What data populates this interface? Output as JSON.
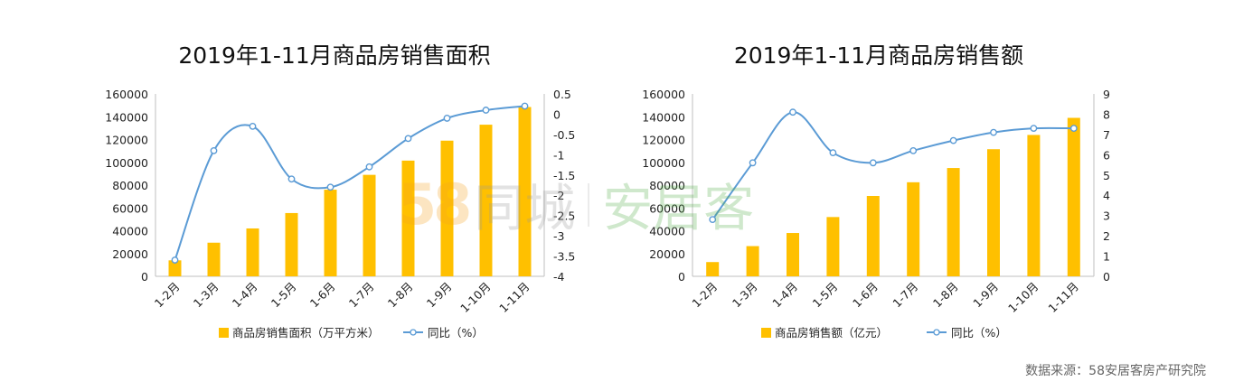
{
  "brand": {
    "bar_color": "#FFC000",
    "line_color": "#5B9BD5"
  },
  "watermark": {
    "num": "58",
    "tongcheng": "同城",
    "anjuke": "安居客"
  },
  "source": "数据来源：58安居客房产研究院",
  "chart_data": [
    {
      "type": "bar",
      "title": "2019年1-11月商品房销售面积",
      "categories": [
        "1-2月",
        "1-3月",
        "1-4月",
        "1-5月",
        "1-6月",
        "1-7月",
        "1-8月",
        "1-9月",
        "1-10月",
        "1-11月"
      ],
      "series": [
        {
          "name": "商品房销售面积（万平方米）",
          "type": "bar",
          "axis": "left",
          "values": [
            14000,
            29500,
            42000,
            55500,
            76000,
            89000,
            101500,
            119000,
            133000,
            148500
          ]
        },
        {
          "name": "同比（%）",
          "type": "line",
          "axis": "right",
          "values": [
            -3.6,
            -0.9,
            -0.3,
            -1.6,
            -1.8,
            -1.3,
            -0.6,
            -0.1,
            0.1,
            0.2
          ]
        }
      ],
      "y_left": {
        "min": 0,
        "max": 160000,
        "step": 20000
      },
      "y_right": {
        "min": -4,
        "max": 0.5,
        "step": 0.5,
        "ticks": [
          "0.5",
          "0",
          "-0.5",
          "-1",
          "-1.5",
          "-2",
          "-2.5",
          "-3",
          "-3.5",
          "-4"
        ]
      },
      "legend_position": "bottom"
    },
    {
      "type": "bar",
      "title": "2019年1-11月商品房销售额",
      "categories": [
        "1-2月",
        "1-3月",
        "1-4月",
        "1-5月",
        "1-6月",
        "1-7月",
        "1-8月",
        "1-9月",
        "1-10月",
        "1-11月"
      ],
      "series": [
        {
          "name": "商品房销售额（亿元）",
          "type": "bar",
          "axis": "left",
          "values": [
            12500,
            26500,
            38000,
            52000,
            70500,
            82500,
            95000,
            111500,
            124000,
            139000
          ]
        },
        {
          "name": "同比（%）",
          "type": "line",
          "axis": "right",
          "values": [
            2.8,
            5.6,
            8.1,
            6.1,
            5.6,
            6.2,
            6.7,
            7.1,
            7.3,
            7.3
          ]
        }
      ],
      "y_left": {
        "min": 0,
        "max": 160000,
        "step": 20000
      },
      "y_right": {
        "min": 0,
        "max": 9,
        "step": 1,
        "ticks": [
          "9",
          "8",
          "7",
          "6",
          "5",
          "4",
          "3",
          "2",
          "1",
          "0"
        ]
      },
      "legend_position": "bottom"
    }
  ]
}
